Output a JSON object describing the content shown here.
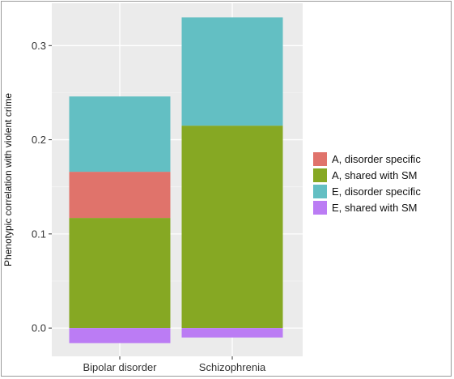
{
  "chart_data": {
    "type": "bar",
    "stacked": true,
    "categories": [
      "Bipolar disorder",
      "Schizophrenia"
    ],
    "ylabel": "Phenotypic correlation with violent crime",
    "xlabel": "",
    "ylim": [
      -0.03,
      0.345
    ],
    "yticks": [
      0.0,
      0.1,
      0.2,
      0.3
    ],
    "ytick_labels": [
      "0.0",
      "0.1",
      "0.2",
      "0.3"
    ],
    "grid": true,
    "legend_position": "right",
    "series": [
      {
        "name": "A, disorder specific",
        "color": "#E0736B",
        "values": [
          0.049,
          0.0
        ]
      },
      {
        "name": "A, shared with SM",
        "color": "#86A823",
        "values": [
          0.117,
          0.215
        ]
      },
      {
        "name": "E, disorder specific",
        "color": "#63BFC3",
        "values": [
          0.08,
          0.115
        ]
      },
      {
        "name": "E, shared with SM",
        "color": "#BB7CF4",
        "values": [
          -0.016,
          -0.01
        ]
      }
    ],
    "stack_order": [
      "A, shared with SM",
      "A, disorder specific",
      "E, disorder specific"
    ]
  }
}
